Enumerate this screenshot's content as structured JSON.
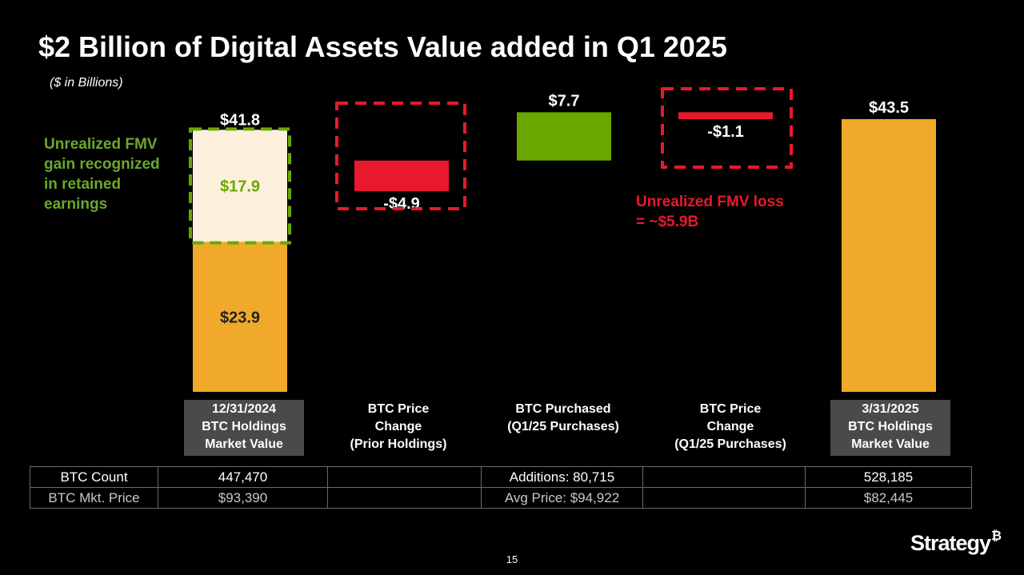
{
  "page": {
    "title": "$2 Billion of Digital Assets Value added in Q1 2025",
    "subtitle": "($ in Billions)",
    "page_number": "15",
    "logo_text": "Strategy",
    "logo_mark": "₿"
  },
  "colors": {
    "background": "#000000",
    "orange": "#f0a92a",
    "cream": "#fcf0dc",
    "green": "#6aa800",
    "red": "#e8192c",
    "label_box": "#4a4a4a",
    "table_head": "#262632"
  },
  "chart_data": {
    "type": "waterfall",
    "title": "$2 Billion of Digital Assets Value added in Q1 2025",
    "unit": "$ in Billions",
    "ylim": [
      0,
      45
    ],
    "categories": [
      [
        "12/31/2024",
        "BTC Holdings",
        "Market Value"
      ],
      [
        "BTC Price",
        "Change",
        "(Prior Holdings)"
      ],
      [
        "BTC Purchased",
        "(Q1/25 Purchases)"
      ],
      [
        "BTC Price",
        "Change",
        "(Q1/25 Purchases)"
      ],
      [
        "3/31/2025",
        "BTC Holdings",
        "Market Value"
      ]
    ],
    "bars": [
      {
        "name": "start-cost-basis",
        "base": 0,
        "value": 23.9,
        "label": "$23.9",
        "color": "orange"
      },
      {
        "name": "start-unrealized-gain",
        "base": 23.9,
        "value": 17.9,
        "label": "$17.9",
        "color": "cream",
        "total_label": "$41.8"
      },
      {
        "name": "price-change-prior",
        "base": 36.9,
        "value": -4.9,
        "label": "-$4.9",
        "color": "red"
      },
      {
        "name": "btc-purchased",
        "base": 36.9,
        "value": 7.7,
        "label": "$7.7",
        "color": "green"
      },
      {
        "name": "price-change-q1",
        "base": 44.6,
        "value": -1.1,
        "label": "-$1.1",
        "color": "red"
      },
      {
        "name": "end-holdings",
        "base": 0,
        "value": 43.5,
        "label": "$43.5",
        "color": "orange"
      }
    ],
    "annotations": [
      {
        "text": [
          "Unrealized FMV",
          "gain recognized",
          "in retained",
          "earnings"
        ],
        "color": "green"
      },
      {
        "text": [
          "Unrealized FMV loss",
          "= ~$5.9B"
        ],
        "color": "red"
      }
    ]
  },
  "table": {
    "rows": [
      {
        "label": "BTC Count",
        "cells": [
          "447,470",
          "",
          "Additions: 80,715",
          "",
          "528,185"
        ]
      },
      {
        "label": "BTC Mkt. Price",
        "cells": [
          "$93,390",
          "",
          "Avg Price: $94,922",
          "",
          "$82,445"
        ]
      }
    ]
  }
}
